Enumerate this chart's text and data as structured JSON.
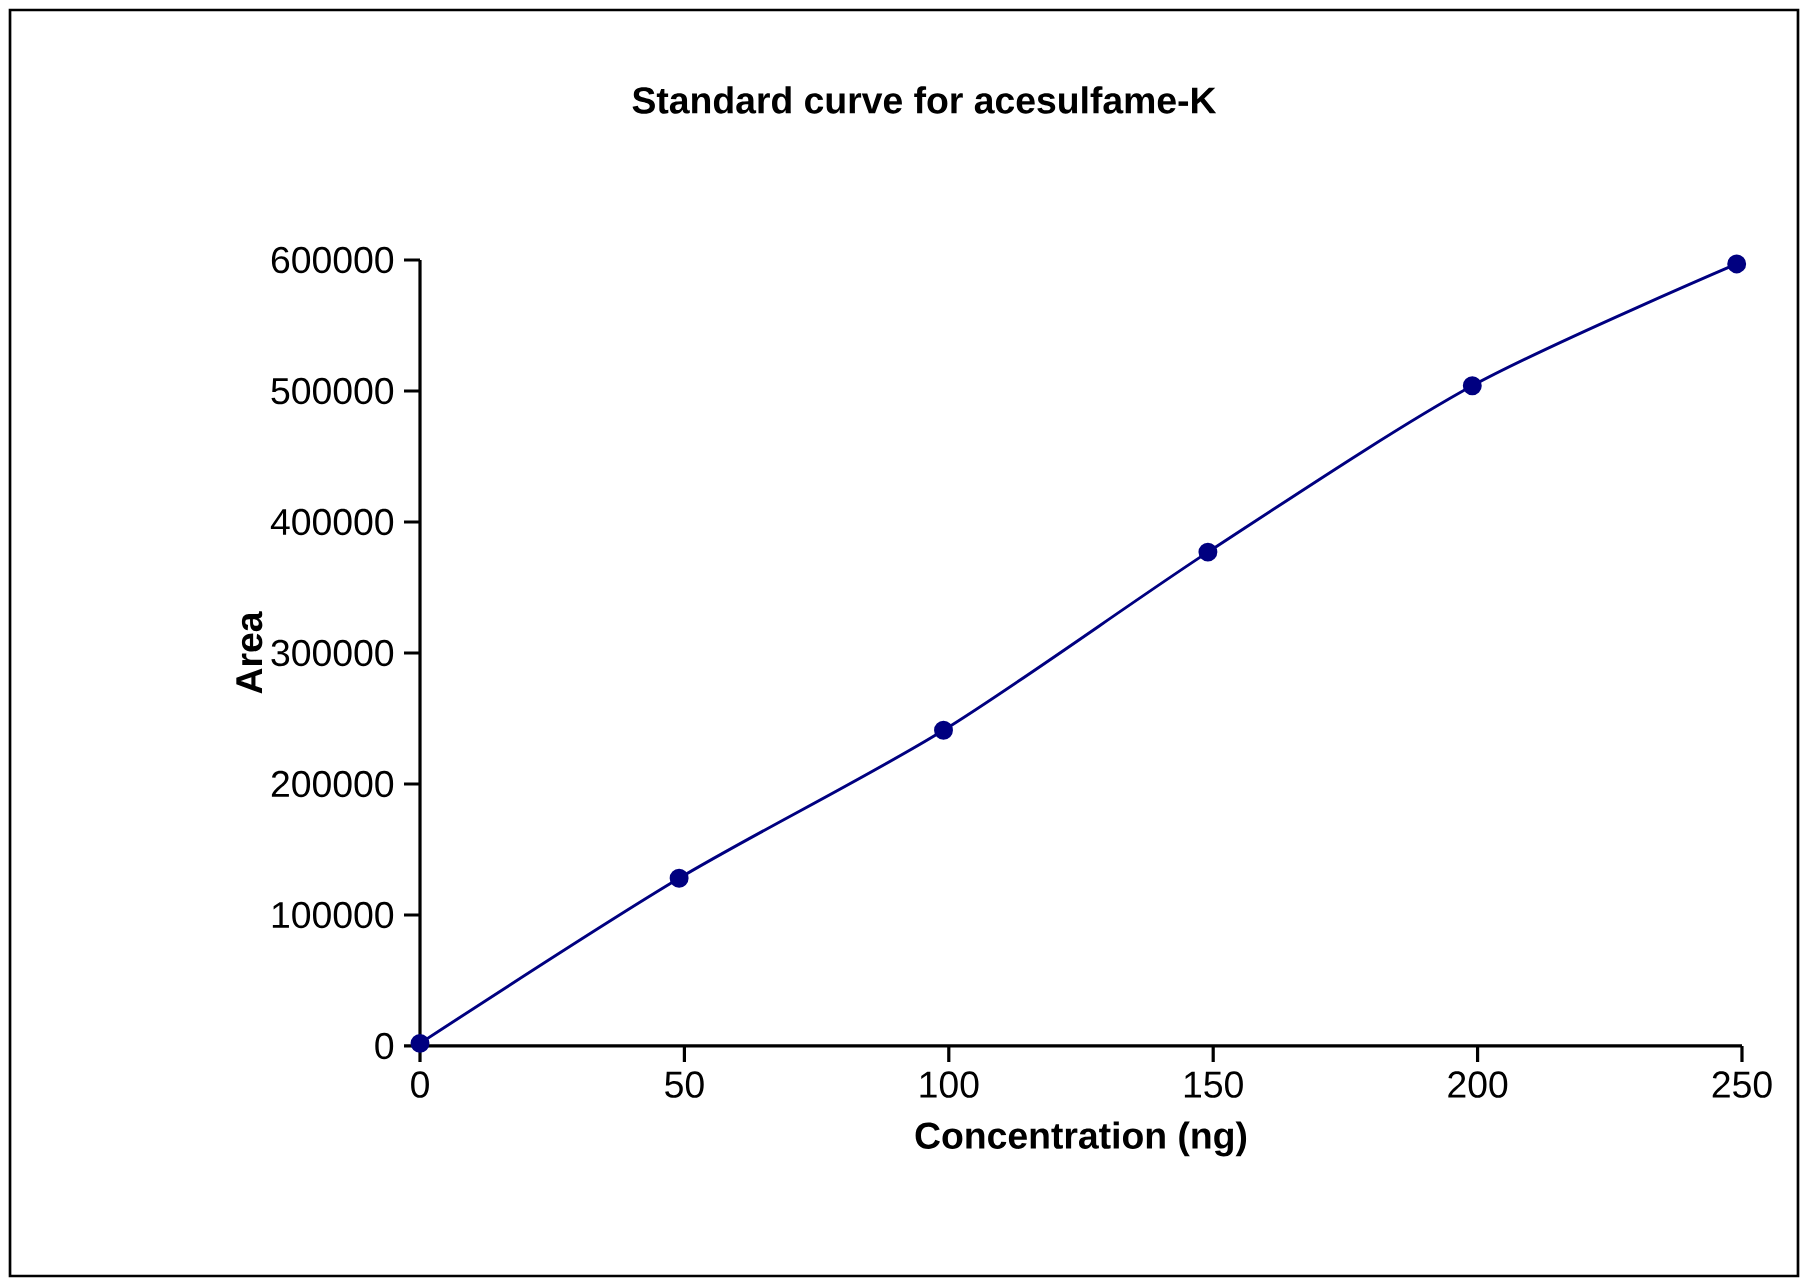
{
  "chart_data": {
    "type": "line",
    "title": "Standard curve for acesulfame-K",
    "xlabel": "Concentration (ng)",
    "ylabel": "Area",
    "x": [
      0,
      49,
      99,
      149,
      199,
      249
    ],
    "series": [
      {
        "color": "#000080",
        "values": [
          2000,
          128000,
          241000,
          377000,
          504000,
          597000
        ]
      }
    ],
    "xlim": [
      0,
      250
    ],
    "ylim": [
      0,
      600000
    ],
    "xticks": [
      0,
      50,
      100,
      150,
      200,
      250
    ],
    "yticks": [
      0,
      100000,
      200000,
      300000,
      400000,
      500000,
      600000
    ],
    "marker": "circle",
    "line_style": "solid",
    "grid": false
  }
}
